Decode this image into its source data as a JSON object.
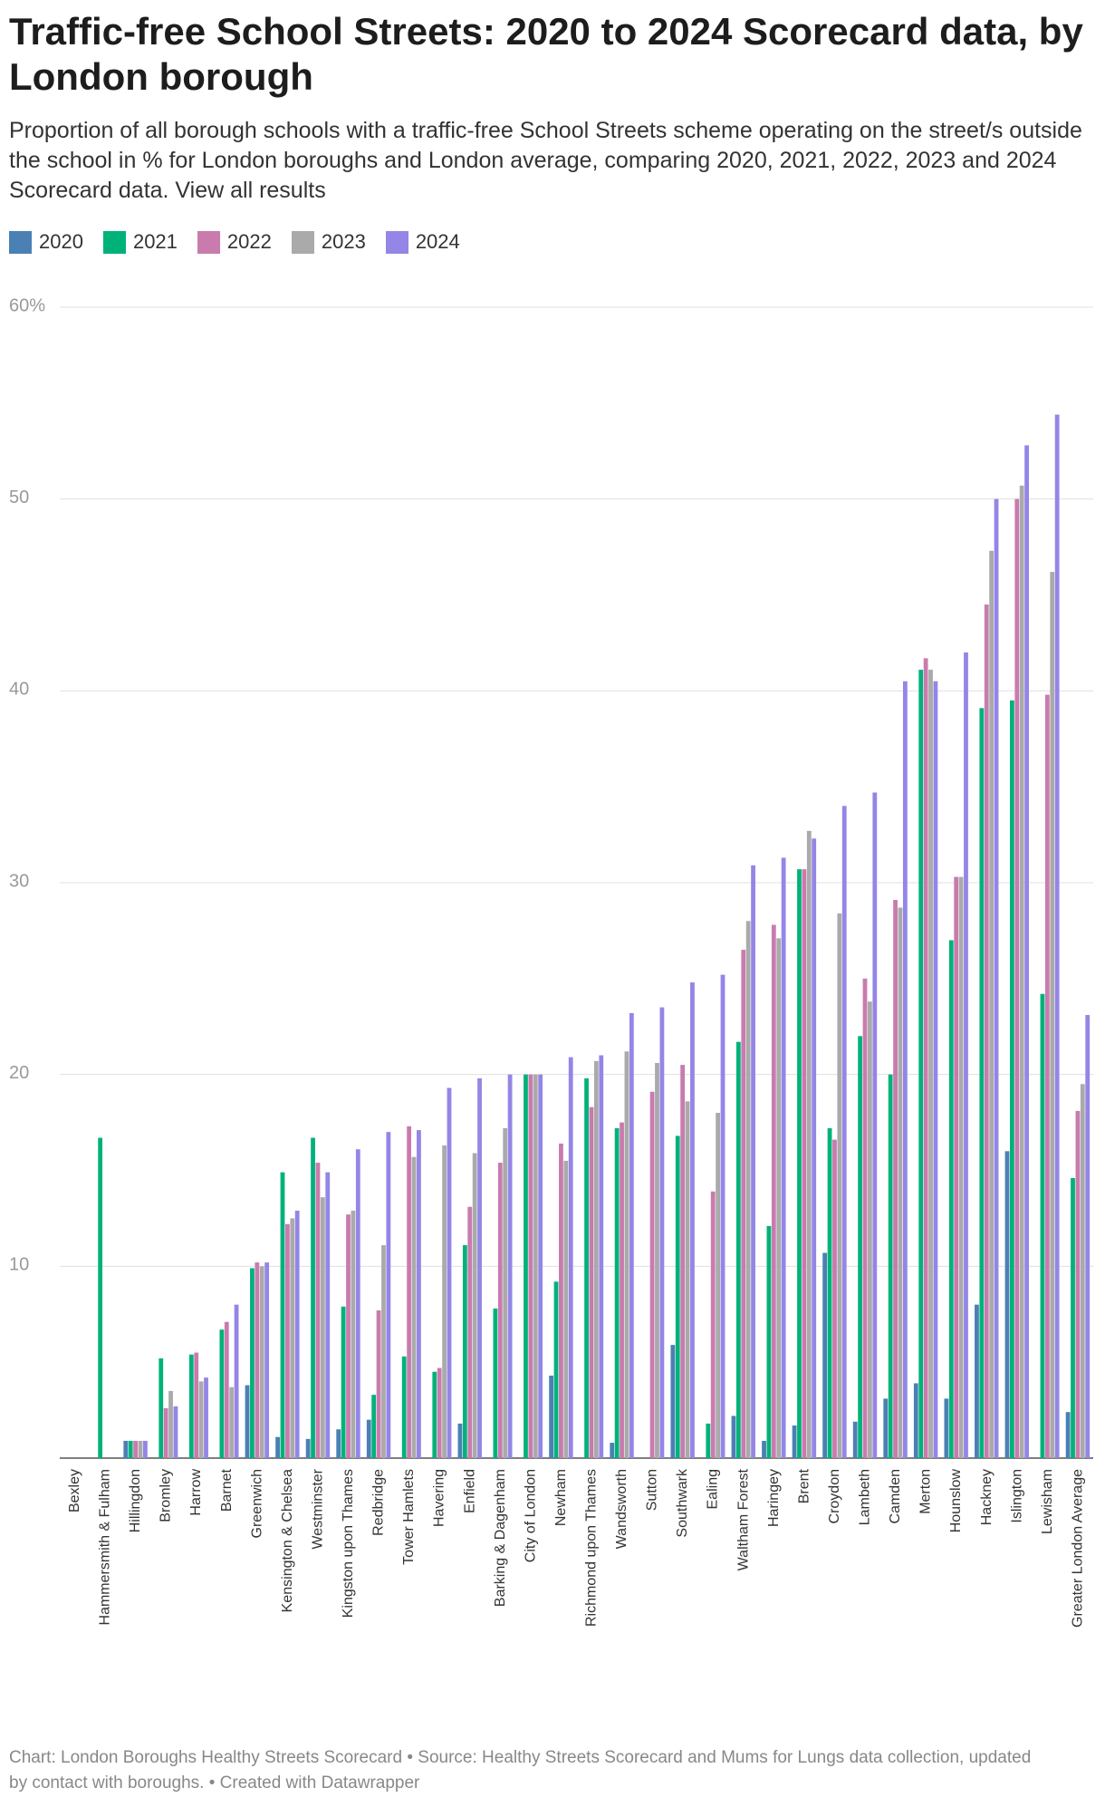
{
  "chart_data": {
    "type": "bar",
    "title": "Traffic-free School Streets: 2020 to 2024 Scorecard data, by London borough",
    "subtitle": "Proportion of all borough schools with a traffic-free School Streets scheme operating on the street/s outside the school in % for London boroughs and London average, comparing 2020, 2021, 2022, 2023 and 2024 Scorecard data. View all results",
    "footer": "Chart: London Boroughs Healthy Streets Scorecard • Source: Healthy Streets Scorecard and Mums for Lungs data collection, updated by contact with boroughs. • Created with Datawrapper",
    "categories": [
      "Bexley",
      "Hammersmith & Fulham",
      "Hillingdon",
      "Bromley",
      "Harrow",
      "Barnet",
      "Greenwich",
      "Kensington & Chelsea",
      "Westminster",
      "Kingston upon Thames",
      "Redbridge",
      "Tower Hamlets",
      "Havering",
      "Enfield",
      "Barking & Dagenham",
      "City of London",
      "Newham",
      "Richmond upon Thames",
      "Wandsworth",
      "Sutton",
      "Southwark",
      "Ealing",
      "Waltham Forest",
      "Haringey",
      "Brent",
      "Croydon",
      "Lambeth",
      "Camden",
      "Merton",
      "Hounslow",
      "Hackney",
      "Islington",
      "Lewisham",
      "Greater London Average"
    ],
    "series": [
      {
        "name": "2020",
        "color": "#4a80b4",
        "values": [
          0,
          0,
          0.9,
          0,
          0,
          0,
          3.8,
          1.1,
          1.0,
          1.5,
          2.0,
          0,
          0,
          1.8,
          0,
          0,
          4.3,
          0,
          0.8,
          0,
          5.9,
          0,
          2.2,
          0.9,
          1.7,
          10.7,
          1.9,
          3.1,
          3.9,
          3.1,
          8.0,
          16.0,
          0,
          2.4
        ]
      },
      {
        "name": "2021",
        "color": "#00b27a",
        "values": [
          0,
          16.7,
          0.9,
          5.2,
          5.4,
          6.7,
          9.9,
          14.9,
          16.7,
          7.9,
          3.3,
          5.3,
          4.5,
          11.1,
          7.8,
          20.0,
          9.2,
          19.8,
          17.2,
          0,
          16.8,
          1.8,
          21.7,
          12.1,
          30.7,
          17.2,
          22.0,
          20.0,
          41.1,
          27.0,
          39.1,
          39.5,
          24.2,
          14.6
        ]
      },
      {
        "name": "2022",
        "color": "#c97bae",
        "values": [
          0,
          0,
          0.9,
          2.6,
          5.5,
          7.1,
          10.2,
          12.2,
          15.4,
          12.7,
          7.7,
          17.3,
          4.7,
          13.1,
          15.4,
          20.0,
          16.4,
          18.3,
          17.5,
          19.1,
          20.5,
          13.9,
          26.5,
          27.8,
          30.7,
          16.6,
          25.0,
          29.1,
          41.7,
          30.3,
          44.5,
          50.0,
          39.8,
          18.1
        ]
      },
      {
        "name": "2023",
        "color": "#aaaaaa",
        "values": [
          0,
          0,
          0.9,
          3.5,
          4.0,
          3.7,
          10.0,
          12.5,
          13.6,
          12.9,
          11.1,
          15.7,
          16.3,
          15.9,
          17.2,
          20.0,
          15.5,
          20.7,
          21.2,
          20.6,
          18.6,
          18.0,
          28.0,
          27.1,
          32.7,
          28.4,
          23.8,
          28.7,
          41.1,
          30.3,
          47.3,
          50.7,
          46.2,
          19.5
        ]
      },
      {
        "name": "2024",
        "color": "#9386e6",
        "values": [
          0,
          0,
          0.9,
          2.7,
          4.2,
          8.0,
          10.2,
          12.9,
          14.9,
          16.1,
          17.0,
          17.1,
          19.3,
          19.8,
          20.0,
          20.0,
          20.9,
          21.0,
          23.2,
          23.5,
          24.8,
          25.2,
          30.9,
          31.3,
          32.3,
          34.0,
          34.7,
          40.5,
          40.5,
          42.0,
          50.0,
          52.8,
          54.4,
          23.1
        ]
      }
    ],
    "ylim": [
      0,
      60
    ],
    "yticks": [
      10,
      20,
      30,
      40,
      50,
      {
        "value": 60,
        "label": "60%"
      }
    ],
    "grid": true
  }
}
